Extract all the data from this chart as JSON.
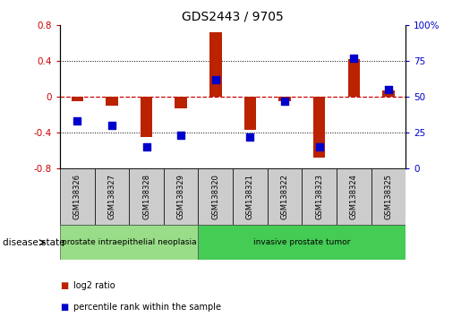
{
  "title": "GDS2443 / 9705",
  "samples": [
    "GSM138326",
    "GSM138327",
    "GSM138328",
    "GSM138329",
    "GSM138320",
    "GSM138321",
    "GSM138322",
    "GSM138323",
    "GSM138324",
    "GSM138325"
  ],
  "log2_ratio": [
    -0.05,
    -0.1,
    -0.45,
    -0.13,
    0.72,
    -0.37,
    -0.05,
    -0.68,
    0.42,
    0.07
  ],
  "percentile_rank": [
    33,
    30,
    15,
    23,
    62,
    22,
    47,
    15,
    77,
    55
  ],
  "ylim_left": [
    -0.8,
    0.8
  ],
  "ylim_right": [
    0,
    100
  ],
  "yticks_left": [
    -0.8,
    -0.4,
    0.0,
    0.4,
    0.8
  ],
  "yticks_right": [
    0,
    25,
    50,
    75,
    100
  ],
  "ytick_labels_left": [
    "-0.8",
    "-0.4",
    "0",
    "0.4",
    "0.8"
  ],
  "ytick_labels_right": [
    "0",
    "25",
    "50",
    "75",
    "100%"
  ],
  "bar_color": "#bb2200",
  "dot_color": "#0000cc",
  "zero_line_color": "#cc0000",
  "grid_color": "#000000",
  "disease_groups": [
    {
      "label": "prostate intraepithelial neoplasia",
      "start": 0,
      "end": 3,
      "color": "#99dd88"
    },
    {
      "label": "invasive prostate tumor",
      "start": 4,
      "end": 9,
      "color": "#44cc55"
    }
  ],
  "legend_items": [
    {
      "label": "log2 ratio",
      "color": "#bb2200"
    },
    {
      "label": "percentile rank within the sample",
      "color": "#0000cc"
    }
  ],
  "disease_state_label": "disease state",
  "bar_width": 0.35,
  "dot_size": 35,
  "background_color": "#ffffff",
  "sample_box_color": "#cccccc",
  "tick_label_color_left": "#cc0000",
  "tick_label_color_right": "#0000cc"
}
